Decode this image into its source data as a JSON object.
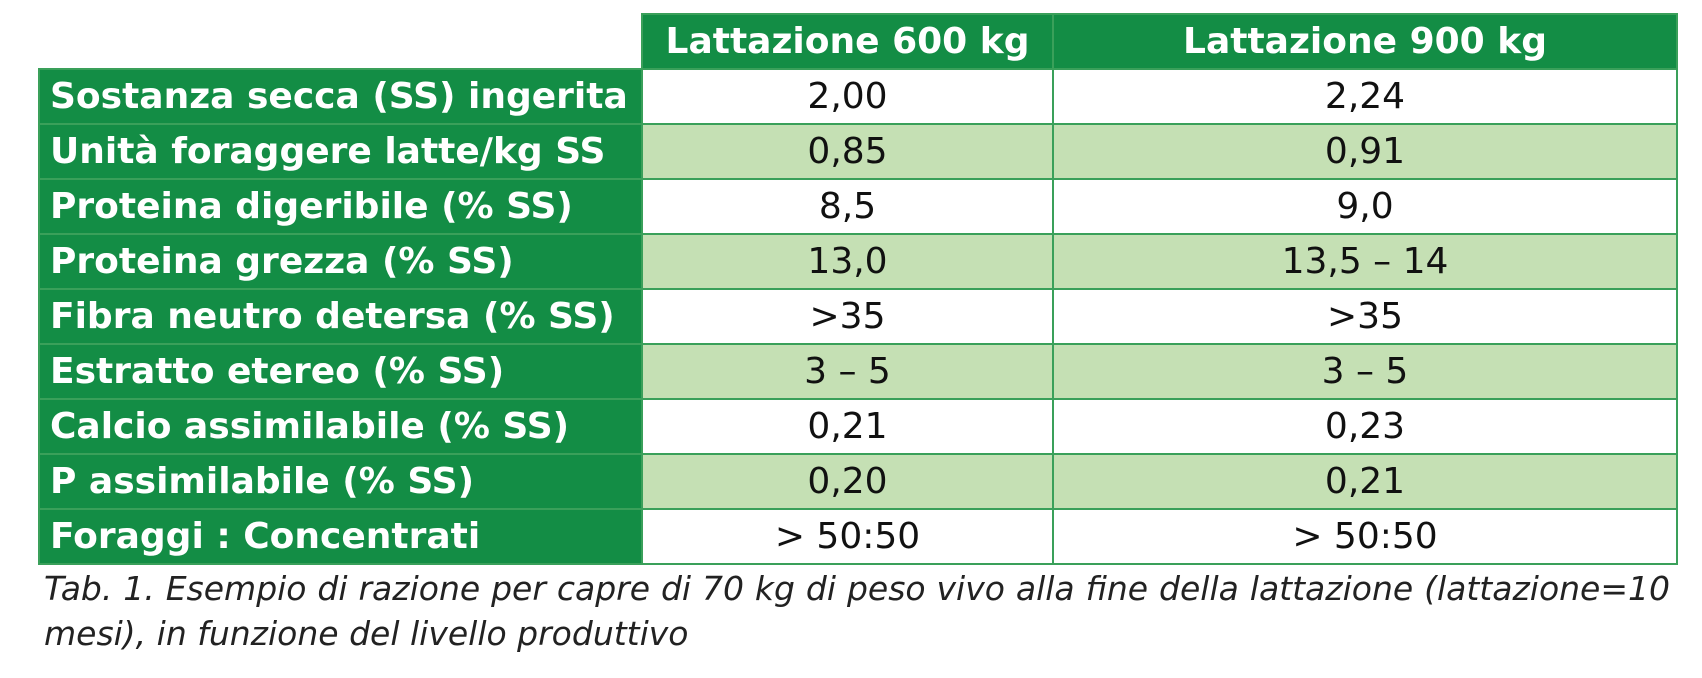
{
  "table": {
    "columns": [
      "Lattazione 600 kg",
      "Lattazione 900 kg"
    ],
    "rows": [
      [
        "Sostanza secca (SS) ingerita",
        "2,00",
        "2,24"
      ],
      [
        "Unità foraggere latte/kg SS",
        "0,85",
        "0,91"
      ],
      [
        "Proteina digeribile (% SS)",
        "8,5",
        "9,0"
      ],
      [
        "Proteina grezza (% SS)",
        "13,0",
        "13,5 – 14"
      ],
      [
        "Fibra neutro detersa (% SS)",
        ">35",
        ">35"
      ],
      [
        "Estratto etereo (% SS)",
        "3 – 5",
        "3 – 5"
      ],
      [
        "Calcio assimilabile (% SS)",
        "0,21",
        "0,23"
      ],
      [
        "P assimilabile (% SS)",
        "0,20",
        "0,21"
      ],
      [
        "Foraggi : Concentrati",
        "> 50:50",
        "> 50:50"
      ]
    ]
  },
  "caption": "Tab. 1. Esempio di razione per capre di 70 kg di peso vivo alla fine della lattazione (lattazione=10 mesi), in funzione del livello produttivo"
}
